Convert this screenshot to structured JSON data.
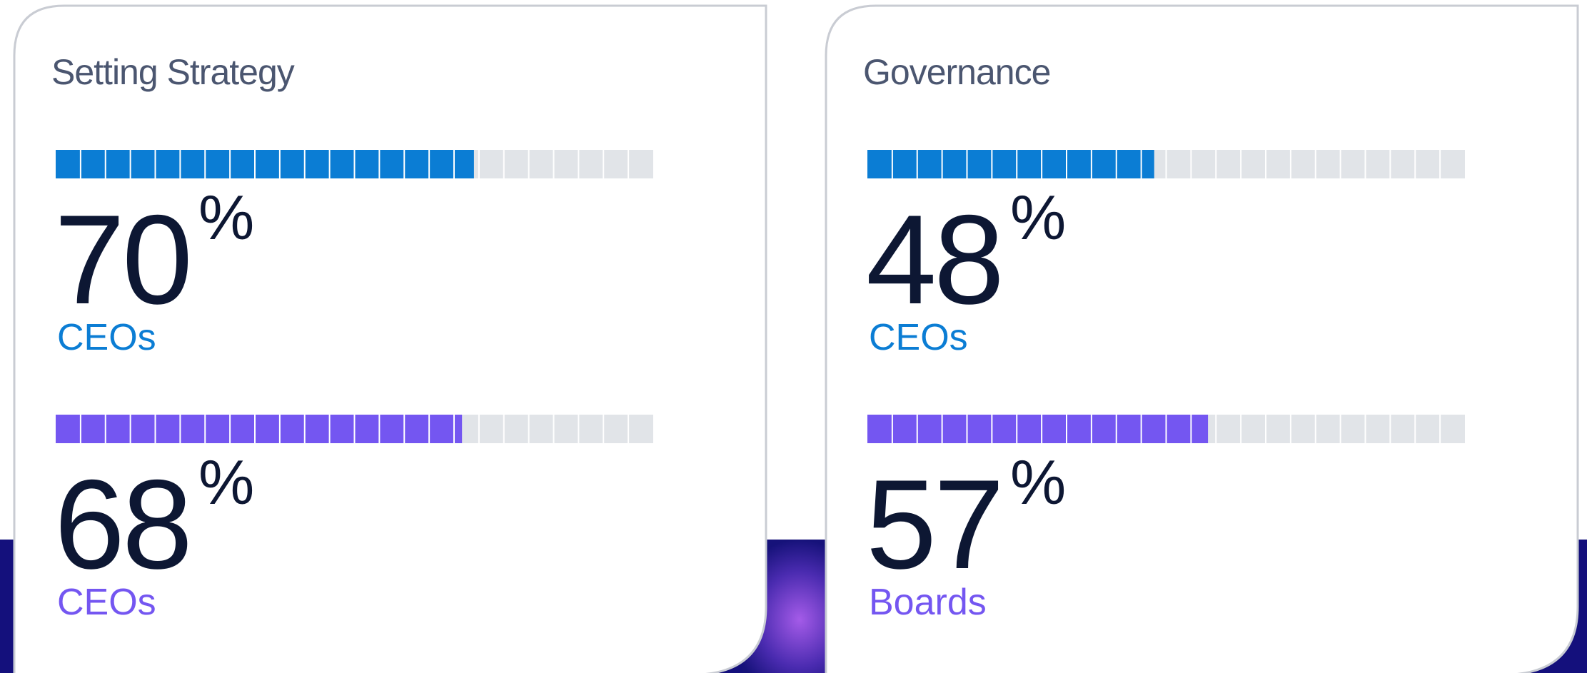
{
  "bar_range": [
    0,
    100
  ],
  "cards": [
    {
      "title": "Setting Strategy",
      "stats": [
        {
          "value": 70,
          "unit": "%",
          "label": "CEOs",
          "color": "#0b7dd4"
        },
        {
          "value": 68,
          "unit": "%",
          "label": "CEOs",
          "color": "#7456f1"
        }
      ]
    },
    {
      "title": "Governance",
      "stats": [
        {
          "value": 48,
          "unit": "%",
          "label": "CEOs",
          "color": "#0b7dd4"
        },
        {
          "value": 57,
          "unit": "%",
          "label": "Boards",
          "color": "#7456f1"
        }
      ]
    }
  ]
}
